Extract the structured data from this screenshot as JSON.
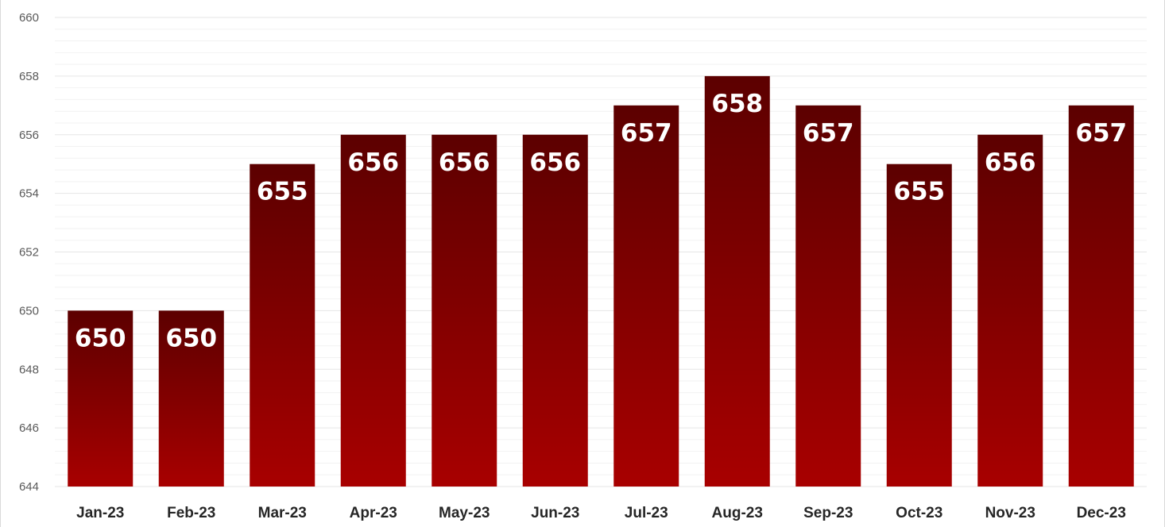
{
  "chart_data": {
    "type": "bar",
    "categories": [
      "Jan-23",
      "Feb-23",
      "Mar-23",
      "Apr-23",
      "May-23",
      "Jun-23",
      "Jul-23",
      "Aug-23",
      "Sep-23",
      "Oct-23",
      "Nov-23",
      "Dec-23"
    ],
    "values": [
      650,
      650,
      655,
      656,
      656,
      656,
      657,
      658,
      657,
      655,
      656,
      657
    ],
    "data_labels": [
      "650",
      "650",
      "655",
      "656",
      "656",
      "656",
      "657",
      "658",
      "657",
      "655",
      "656",
      "657"
    ],
    "y_ticks": [
      644,
      646,
      648,
      650,
      652,
      654,
      656,
      658,
      660
    ],
    "y_tick_labels": [
      "644",
      "646",
      "648",
      "650",
      "652",
      "654",
      "656",
      "658",
      "660"
    ],
    "ylim": [
      644,
      660
    ],
    "grid": true,
    "minor_grid": true,
    "legend": "none",
    "colors": {
      "bar_top": "#5c0000",
      "bar_bottom": "#a80000",
      "grid_major": "#e6e6e6",
      "grid_minor": "#f2f2f2",
      "data_label": "#ffffff",
      "tick_label": "#595959",
      "category_label": "#262626"
    }
  }
}
